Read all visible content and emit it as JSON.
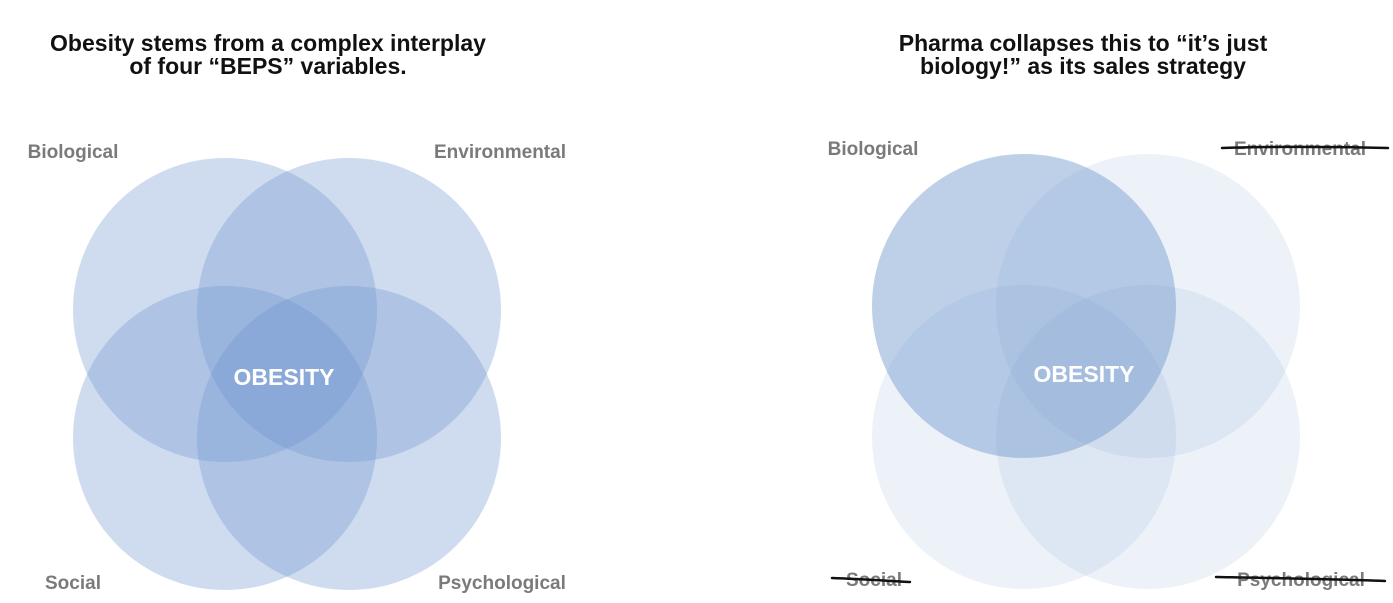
{
  "left": {
    "title": [
      "Obesity stems from a complex interplay",
      "of four “BEPS” variables."
    ],
    "labels": {
      "biological": "Biological",
      "environmental": "Environmental",
      "social": "Social",
      "psychological": "Psychological"
    },
    "center": "OBESITY"
  },
  "right": {
    "title": [
      "Pharma collapses this to “it’s just",
      "biology!” as its sales strategy"
    ],
    "labels": {
      "biological": "Biological",
      "environmental": "Environmental",
      "social": "Social",
      "psychological": "Psychological"
    },
    "center": "OBESITY"
  }
}
